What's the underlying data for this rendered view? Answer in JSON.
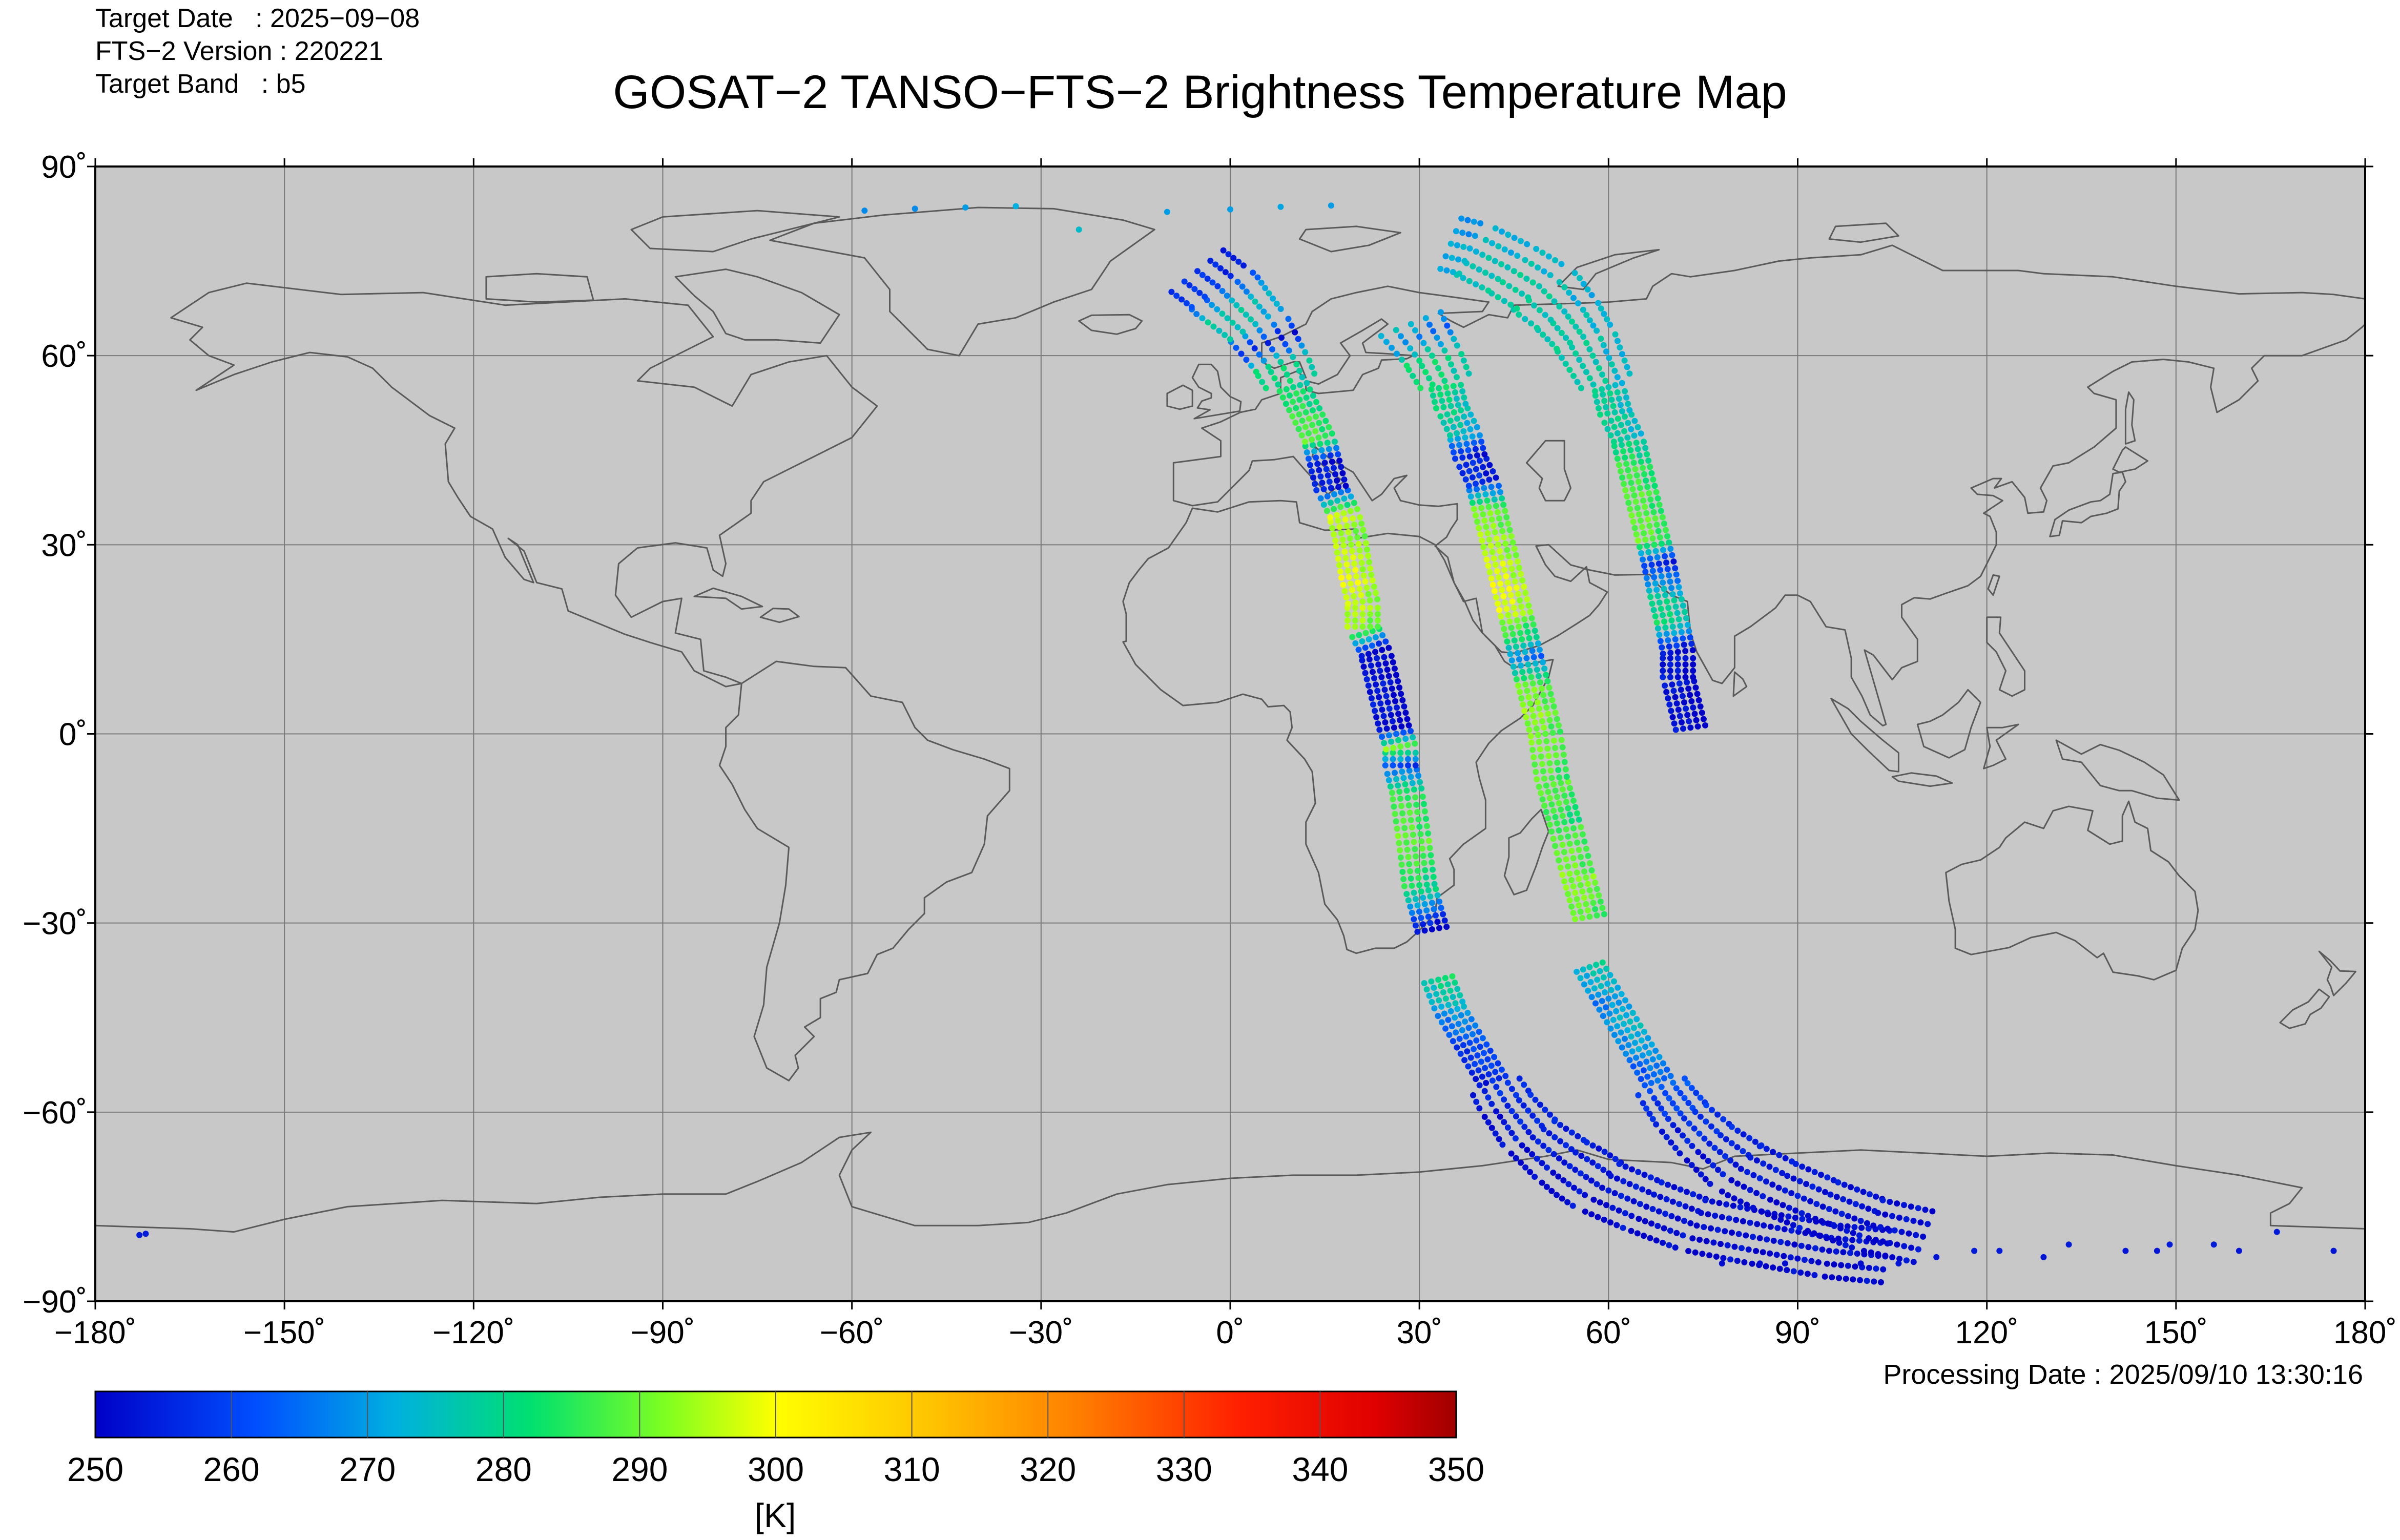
{
  "header": {
    "target_date": "Target Date   : 2025−09−08",
    "fts_version": "FTS−2 Version : 220221",
    "target_band": "Target Band   : b5",
    "title": "GOSAT−2 TANSO−FTS−2 Brightness Temperature Map"
  },
  "footer": {
    "processing_date": "Processing Date : 2025/09/10 13:30:16"
  },
  "colors": {
    "ocean": "#c8c8c8",
    "land_outline": "#5a5a5a",
    "grid": "#7a7a7a"
  },
  "chart_data": {
    "type": "scatter",
    "projection": "equirectangular",
    "xlim": [
      -180,
      180
    ],
    "ylim": [
      -90,
      90
    ],
    "grid": true,
    "x_ticks": [
      {
        "value": -180,
        "label": "−180˚"
      },
      {
        "value": -150,
        "label": "−150˚"
      },
      {
        "value": -120,
        "label": "−120˚"
      },
      {
        "value": -90,
        "label": "−90˚"
      },
      {
        "value": -60,
        "label": "−60˚"
      },
      {
        "value": -30,
        "label": "−30˚"
      },
      {
        "value": 0,
        "label": "0˚"
      },
      {
        "value": 30,
        "label": "30˚"
      },
      {
        "value": 60,
        "label": "60˚"
      },
      {
        "value": 90,
        "label": "90˚"
      },
      {
        "value": 120,
        "label": "120˚"
      },
      {
        "value": 150,
        "label": "150˚"
      },
      {
        "value": 180,
        "label": "180˚"
      }
    ],
    "y_ticks": [
      {
        "value": 90,
        "label": "90˚"
      },
      {
        "value": 60,
        "label": "60˚"
      },
      {
        "value": 30,
        "label": "30˚"
      },
      {
        "value": 0,
        "label": "0˚"
      },
      {
        "value": -30,
        "label": "−30˚"
      },
      {
        "value": -60,
        "label": "−60˚"
      },
      {
        "value": -90,
        "label": "−90˚"
      }
    ],
    "colorbar": {
      "min": 250,
      "max": 350,
      "unit": "[K]",
      "tick_labels": [
        "250",
        "260",
        "270",
        "280",
        "290",
        "300",
        "310",
        "320",
        "330",
        "340",
        "350"
      ]
    },
    "swaths": [
      {
        "segments": [
          {
            "lat": -31,
            "lon": 32,
            "bt": 252
          },
          {
            "lat": -24,
            "lon": 30,
            "bt": 284
          },
          {
            "lat": -16,
            "lon": 29,
            "bt": 290
          },
          {
            "lat": -9,
            "lon": 28,
            "bt": 285
          },
          {
            "lat": -5,
            "lon": 27,
            "bt": 262
          },
          {
            "lat": -2,
            "lon": 27,
            "bt": 292
          },
          {
            "lat": 1,
            "lon": 26,
            "bt": 252
          },
          {
            "lat": 5,
            "lon": 25,
            "bt": 254
          },
          {
            "lat": 9,
            "lon": 24,
            "bt": 253
          },
          {
            "lat": 13,
            "lon": 23,
            "bt": 252
          },
          {
            "lat": 17,
            "lon": 21,
            "bt": 294
          },
          {
            "lat": 21,
            "lon": 21,
            "bt": 296
          },
          {
            "lat": 25,
            "lon": 20,
            "bt": 299
          },
          {
            "lat": 31,
            "lon": 19,
            "bt": 294
          },
          {
            "lat": 35,
            "lon": 18,
            "bt": 297
          },
          {
            "lat": 39,
            "lon": 16,
            "bt": 256
          },
          {
            "lat": 43,
            "lon": 15,
            "bt": 254
          },
          {
            "lat": 47,
            "lon": 14,
            "bt": 289
          },
          {
            "lat": 51,
            "lon": 12,
            "bt": 286
          },
          {
            "lat": 55,
            "lon": 10,
            "bt": 282
          },
          {
            "lat": 59,
            "lon": 8,
            "bt": 280
          },
          {
            "lat": 62,
            "lon": 6,
            "bt": 256
          },
          {
            "lat": 65,
            "lon": 4,
            "bt": 276
          },
          {
            "lat": 68,
            "lon": 1,
            "bt": 277
          },
          {
            "lat": 71,
            "lon": -2,
            "bt": 260
          },
          {
            "lat": 74,
            "lon": -6,
            "bt": 256
          }
        ]
      },
      {
        "segments": [
          {
            "lat": -29,
            "lon": 57,
            "bt": 290
          },
          {
            "lat": -22,
            "lon": 55,
            "bt": 292
          },
          {
            "lat": -14,
            "lon": 53,
            "bt": 286
          },
          {
            "lat": -7,
            "lon": 51,
            "bt": 289
          },
          {
            "lat": 0,
            "lon": 50,
            "bt": 291
          },
          {
            "lat": 4,
            "lon": 49,
            "bt": 293
          },
          {
            "lat": 8,
            "lon": 48,
            "bt": 290
          },
          {
            "lat": 12,
            "lon": 47,
            "bt": 268
          },
          {
            "lat": 16,
            "lon": 46,
            "bt": 286
          },
          {
            "lat": 20,
            "lon": 45,
            "bt": 298
          },
          {
            "lat": 24,
            "lon": 44,
            "bt": 299
          },
          {
            "lat": 28,
            "lon": 43,
            "bt": 296
          },
          {
            "lat": 32,
            "lon": 42,
            "bt": 294
          },
          {
            "lat": 36,
            "lon": 41,
            "bt": 290
          },
          {
            "lat": 40,
            "lon": 40,
            "bt": 258
          },
          {
            "lat": 44,
            "lon": 38,
            "bt": 256
          },
          {
            "lat": 48,
            "lon": 37,
            "bt": 276
          },
          {
            "lat": 52,
            "lon": 35,
            "bt": 280
          },
          {
            "lat": 56,
            "lon": 34,
            "bt": 282
          },
          {
            "lat": 60,
            "lon": 32,
            "bt": 281
          },
          {
            "lat": 63,
            "lon": 30,
            "bt": 268
          },
          {
            "lat": 66,
            "lon": 28,
            "bt": 278
          }
        ]
      },
      {
        "segments": [
          {
            "lat": 1,
            "lon": 73,
            "bt": 253
          },
          {
            "lat": 5,
            "lon": 72,
            "bt": 252
          },
          {
            "lat": 9,
            "lon": 71,
            "bt": 254
          },
          {
            "lat": 13,
            "lon": 71,
            "bt": 253
          },
          {
            "lat": 18,
            "lon": 70,
            "bt": 282
          },
          {
            "lat": 22,
            "lon": 69,
            "bt": 278
          },
          {
            "lat": 27,
            "lon": 68,
            "bt": 258
          },
          {
            "lat": 31,
            "lon": 67,
            "bt": 290
          },
          {
            "lat": 35,
            "lon": 66,
            "bt": 289
          },
          {
            "lat": 39,
            "lon": 65,
            "bt": 288
          },
          {
            "lat": 43,
            "lon": 64,
            "bt": 286
          },
          {
            "lat": 47,
            "lon": 63,
            "bt": 278
          },
          {
            "lat": 51,
            "lon": 61,
            "bt": 279
          },
          {
            "lat": 55,
            "lon": 60,
            "bt": 278
          },
          {
            "lat": 59,
            "lon": 58,
            "bt": 277
          },
          {
            "lat": 63,
            "lon": 56,
            "bt": 278
          },
          {
            "lat": 67,
            "lon": 53,
            "bt": 276
          },
          {
            "lat": 71,
            "lon": 49,
            "bt": 278
          },
          {
            "lat": 74,
            "lon": 44,
            "bt": 277
          },
          {
            "lat": 77,
            "lon": 38,
            "bt": 274
          },
          {
            "lat": 78,
            "lon": 34,
            "bt": 270
          }
        ]
      },
      {
        "segments": [
          {
            "lat": -39,
            "lon": 33,
            "bt": 282
          },
          {
            "lat": -44,
            "lon": 35,
            "bt": 272
          },
          {
            "lat": -49,
            "lon": 38,
            "bt": 262
          },
          {
            "lat": -54,
            "lon": 41,
            "bt": 258
          },
          {
            "lat": -59,
            "lon": 44,
            "bt": 256
          },
          {
            "lat": -64,
            "lon": 48,
            "bt": 255
          },
          {
            "lat": -68,
            "lon": 53,
            "bt": 254
          },
          {
            "lat": -72,
            "lon": 59,
            "bt": 253
          },
          {
            "lat": -75,
            "lon": 66,
            "bt": 253
          },
          {
            "lat": -78,
            "lon": 74,
            "bt": 252
          },
          {
            "lat": -80,
            "lon": 84,
            "bt": 252
          },
          {
            "lat": -82,
            "lon": 95,
            "bt": 252
          },
          {
            "lat": -83,
            "lon": 105,
            "bt": 252
          }
        ]
      },
      {
        "segments": [
          {
            "lat": -37,
            "lon": 57,
            "bt": 278
          },
          {
            "lat": -42,
            "lon": 60,
            "bt": 270
          },
          {
            "lat": -47,
            "lon": 63,
            "bt": 274
          },
          {
            "lat": -52,
            "lon": 66,
            "bt": 268
          },
          {
            "lat": -57,
            "lon": 69,
            "bt": 262
          },
          {
            "lat": -61,
            "lon": 72,
            "bt": 258
          },
          {
            "lat": -65,
            "lon": 76,
            "bt": 256
          },
          {
            "lat": -69,
            "lon": 81,
            "bt": 254
          },
          {
            "lat": -72,
            "lon": 87,
            "bt": 253
          },
          {
            "lat": -75,
            "lon": 94,
            "bt": 253
          },
          {
            "lat": -78,
            "lon": 102,
            "bt": 252
          },
          {
            "lat": -80,
            "lon": 111,
            "bt": 252
          }
        ]
      }
    ],
    "scattered_points": [
      {
        "lat": -79.5,
        "lon": -173,
        "bt": 254
      },
      {
        "lat": -79.3,
        "lon": -172,
        "bt": 254
      },
      {
        "lat": -84,
        "lon": 78,
        "bt": 252
      },
      {
        "lat": -84,
        "lon": 84,
        "bt": 252
      },
      {
        "lat": -84,
        "lon": 88,
        "bt": 252
      },
      {
        "lat": -84,
        "lon": 100,
        "bt": 252
      },
      {
        "lat": -84,
        "lon": 106,
        "bt": 253
      },
      {
        "lat": -83,
        "lon": 112,
        "bt": 253
      },
      {
        "lat": -82,
        "lon": 118,
        "bt": 254
      },
      {
        "lat": -82,
        "lon": 122,
        "bt": 254
      },
      {
        "lat": -83,
        "lon": 129,
        "bt": 253
      },
      {
        "lat": -81,
        "lon": 133,
        "bt": 254
      },
      {
        "lat": -82,
        "lon": 142,
        "bt": 253
      },
      {
        "lat": -82,
        "lon": 147,
        "bt": 253
      },
      {
        "lat": -81,
        "lon": 149,
        "bt": 254
      },
      {
        "lat": -81,
        "lon": 156,
        "bt": 254
      },
      {
        "lat": -82,
        "lon": 160,
        "bt": 253
      },
      {
        "lat": -79,
        "lon": 166,
        "bt": 254
      },
      {
        "lat": -82,
        "lon": 175,
        "bt": 253
      },
      {
        "lat": 83,
        "lon": -58,
        "bt": 268
      },
      {
        "lat": 83.3,
        "lon": -50,
        "bt": 268
      },
      {
        "lat": 83.5,
        "lon": -42,
        "bt": 270
      },
      {
        "lat": 83.7,
        "lon": -34,
        "bt": 272
      },
      {
        "lat": 82.8,
        "lon": -10,
        "bt": 270
      },
      {
        "lat": 83.2,
        "lon": 0,
        "bt": 270
      },
      {
        "lat": 83.6,
        "lon": 8,
        "bt": 271
      },
      {
        "lat": 83.8,
        "lon": 16,
        "bt": 270
      },
      {
        "lat": 80,
        "lon": -24,
        "bt": 274
      }
    ]
  }
}
